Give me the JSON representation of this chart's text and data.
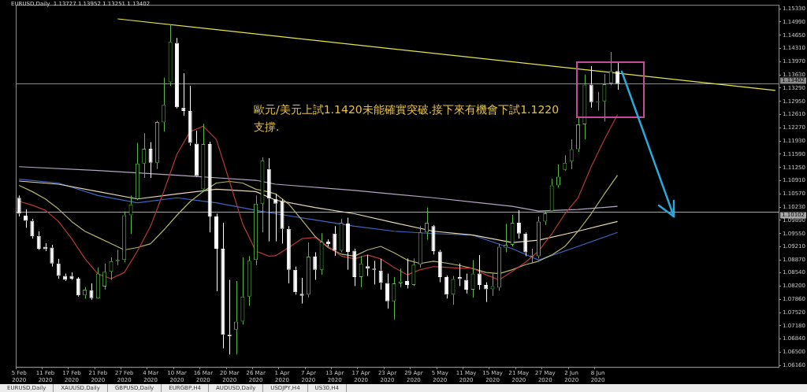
{
  "chart_data": {
    "type": "candlestick",
    "title": "EURUSD,Daily  1.13727 1.13952 1.13251 1.13402",
    "categories": [
      "5 Feb 2020",
      null,
      null,
      null,
      "11 Feb 2020",
      null,
      null,
      null,
      "17 Feb 2020",
      null,
      null,
      null,
      "21 Feb 2020",
      null,
      null,
      null,
      "27 Feb 2020",
      null,
      null,
      null,
      "4 Mar 2020",
      null,
      null,
      null,
      "10 Mar 2020",
      null,
      null,
      null,
      "16 Mar 2020",
      null,
      null,
      null,
      "20 Mar 2020",
      null,
      null,
      null,
      "26 Mar 2020",
      null,
      null,
      null,
      "1 Apr 2020",
      null,
      null,
      null,
      "7 Apr 2020",
      null,
      null,
      null,
      "13 Apr 2020",
      null,
      null,
      null,
      "17 Apr 2020",
      null,
      null,
      null,
      "23 Apr 2020",
      null,
      null,
      null,
      "29 Apr 2020",
      null,
      null,
      null,
      "5 May 2020",
      null,
      null,
      null,
      "11 May 2020",
      null,
      null,
      null,
      "15 May 2020",
      null,
      null,
      null,
      "21 May 2020",
      null,
      null,
      null,
      "27 May 2020",
      null,
      null,
      null,
      "2 Jun 2020",
      null,
      null,
      null,
      "8 Jun 2020",
      null,
      null,
      null,
      null,
      null,
      null,
      null,
      null,
      null,
      null,
      null,
      null,
      null,
      null,
      null,
      null,
      null,
      null,
      null,
      null,
      null,
      null,
      null,
      null,
      null,
      null,
      null
    ],
    "colors": [
      "#ffffff",
      "#ffffff",
      "#ffffff",
      "#ffffff",
      "#ffffff",
      "#ffffff",
      "#ffffff",
      "#ffffff",
      "#ffffff",
      "#ffffff",
      "#5cb84c",
      "#ffffff",
      "#5cb84c",
      "#5cb84c",
      "#5cb84c",
      "#5cb84c",
      "#5cb84c",
      "#5cb84c",
      "#5cb84c",
      "#5cb84c",
      "#ffffff",
      "#5cb84c",
      "#5cb84c",
      "#5cb84c",
      "#ffffff",
      "#ffffff",
      "#ffffff",
      "#ffffff",
      "#5cb84c",
      "#ffffff",
      "#ffffff",
      "#ffffff",
      "#ffffff",
      "#5cb84c",
      "#5cb84c",
      "#5cb84c",
      "#5cb84c",
      "#5cb84c",
      "#ffffff",
      "#ffffff",
      "#ffffff",
      "#ffffff",
      "#ffffff",
      "#ffffff",
      "#5cb84c",
      "#ffffff",
      "#5cb84c",
      "#ffffff",
      "#ffffff",
      "#5cb84c",
      "#ffffff",
      "#ffffff",
      "#5cb84c",
      "#ffffff",
      "#ffffff",
      "#ffffff",
      "#ffffff",
      "#5cb84c",
      "#5cb84c",
      "#ffffff",
      "#5cb84c",
      "#5cb84c",
      "#5cb84c",
      "#ffffff",
      "#ffffff",
      "#ffffff",
      "#5cb84c",
      "#ffffff",
      "#ffffff",
      "#5cb84c",
      "#ffffff",
      "#ffffff",
      "#5cb84c",
      "#5cb84c",
      "#5cb84c",
      "#5cb84c",
      "#ffffff",
      "#ffffff",
      "#5cb84c",
      "#5cb84c",
      "#5cb84c",
      "#5cb84c",
      "#5cb84c",
      "#5cb84c",
      "#5cb84c",
      "#5cb84c",
      "#5cb84c",
      "#ffffff",
      "#5cb84c",
      "#5cb84c",
      "#5cb84c",
      "#ffffff",
      null,
      null,
      null,
      null,
      null,
      null,
      null,
      null,
      null,
      null,
      null,
      null,
      null,
      null,
      null,
      null,
      null,
      null,
      null,
      null,
      null,
      null,
      null,
      null
    ],
    "ohlc": [
      [
        1.1047,
        1.1053,
        1.0999,
        1.1006
      ],
      [
        1.1001,
        1.1017,
        1.097,
        1.0988
      ],
      [
        1.0988,
        1.0993,
        1.0942,
        1.0948
      ],
      [
        1.0949,
        1.0961,
        1.0913,
        1.0916
      ],
      [
        1.0921,
        1.093,
        1.091,
        1.0915
      ],
      [
        1.0919,
        1.0926,
        1.087,
        1.0878
      ],
      [
        1.0878,
        1.089,
        1.0839,
        1.0846
      ],
      [
        1.0846,
        1.0852,
        1.0833,
        1.0836
      ],
      [
        1.0846,
        1.0855,
        1.0836,
        1.0839
      ],
      [
        1.0839,
        1.0843,
        1.0793,
        1.0796
      ],
      [
        1.0796,
        1.0817,
        1.0788,
        1.0811
      ],
      [
        1.0809,
        1.0827,
        1.0785,
        1.0789
      ],
      [
        1.0788,
        1.0868,
        1.0787,
        1.0852
      ],
      [
        1.0819,
        1.0878,
        1.0811,
        1.0857
      ],
      [
        1.0857,
        1.0894,
        1.0836,
        1.0884
      ],
      [
        1.0884,
        1.0913,
        1.0874,
        1.0887
      ],
      [
        1.0887,
        1.1012,
        1.0881,
        1.1002
      ],
      [
        1.1002,
        1.1053,
        1.0954,
        1.103
      ],
      [
        1.1044,
        1.1188,
        1.1041,
        1.1135
      ],
      [
        1.1135,
        1.1213,
        1.1098,
        1.1173
      ],
      [
        1.1173,
        1.119,
        1.1098,
        1.1137
      ],
      [
        1.1137,
        1.1245,
        1.1121,
        1.1242
      ],
      [
        1.1241,
        1.1356,
        1.1217,
        1.1286
      ],
      [
        1.1344,
        1.1493,
        1.1335,
        1.1448
      ],
      [
        1.1445,
        1.1458,
        1.1277,
        1.128
      ],
      [
        1.1279,
        1.1367,
        1.1258,
        1.127
      ],
      [
        1.127,
        1.1335,
        1.1181,
        1.1188
      ],
      [
        1.1186,
        1.122,
        1.1101,
        1.1103
      ],
      [
        1.1069,
        1.1237,
        1.1063,
        1.1185
      ],
      [
        1.1185,
        1.1191,
        1.0958,
        1.0999
      ],
      [
        1.0999,
        1.1006,
        1.0807,
        1.0916
      ],
      [
        1.0916,
        1.0983,
        1.066,
        1.0695
      ],
      [
        1.0695,
        1.0836,
        1.0644,
        1.0691
      ],
      [
        1.0708,
        1.0833,
        1.0644,
        1.0729
      ],
      [
        1.0729,
        1.0894,
        1.0721,
        1.0793
      ],
      [
        1.0793,
        1.0897,
        1.0769,
        1.0885
      ],
      [
        1.0887,
        1.1053,
        1.0874,
        1.1032
      ],
      [
        1.1032,
        1.1151,
        1.0958,
        1.1143
      ],
      [
        1.1121,
        1.1149,
        1.0935,
        1.1045
      ],
      [
        1.1044,
        1.1057,
        1.0935,
        1.1032
      ],
      [
        1.1038,
        1.1044,
        1.0929,
        1.0967
      ],
      [
        1.0967,
        1.0974,
        1.0827,
        1.0862
      ],
      [
        1.0862,
        1.087,
        1.0798,
        1.0804
      ],
      [
        1.08,
        1.0841,
        1.0775,
        1.0795
      ],
      [
        1.0798,
        1.0932,
        1.0791,
        1.0896
      ],
      [
        1.0896,
        1.0907,
        1.0836,
        1.0862
      ],
      [
        1.0862,
        1.0956,
        1.0849,
        1.0934
      ],
      [
        1.0934,
        1.094,
        1.0922,
        1.0928
      ],
      [
        1.0955,
        1.0974,
        1.0898,
        1.0911
      ],
      [
        1.0911,
        1.0993,
        1.0907,
        1.0983
      ],
      [
        1.0981,
        1.0996,
        1.0862,
        1.0908
      ],
      [
        1.0911,
        1.0916,
        1.082,
        1.0843
      ],
      [
        1.0843,
        1.0897,
        1.0817,
        1.0878
      ],
      [
        1.0871,
        1.09,
        1.0846,
        1.0865
      ],
      [
        1.0865,
        1.0885,
        1.0824,
        1.0862
      ],
      [
        1.086,
        1.089,
        1.0811,
        1.0828
      ],
      [
        1.0828,
        1.0852,
        1.0762,
        1.0781
      ],
      [
        1.0781,
        1.0843,
        1.0734,
        1.0827
      ],
      [
        1.0827,
        1.0865,
        1.0817,
        1.0832
      ],
      [
        1.0833,
        1.0891,
        1.0814,
        1.0823
      ],
      [
        1.0823,
        1.0891,
        1.082,
        1.0875
      ],
      [
        1.0875,
        1.0974,
        1.0868,
        1.0958
      ],
      [
        1.0958,
        1.1022,
        1.0939,
        1.0983
      ],
      [
        1.0974,
        1.0977,
        1.0901,
        1.091
      ],
      [
        1.0909,
        1.0913,
        1.083,
        1.0843
      ],
      [
        1.0843,
        1.0847,
        1.0788,
        1.0798
      ],
      [
        1.0798,
        1.0846,
        1.0772,
        1.0838
      ],
      [
        1.0843,
        1.0878,
        1.082,
        1.0838
      ],
      [
        1.0836,
        1.0852,
        1.0801,
        1.0811
      ],
      [
        1.0811,
        1.0887,
        1.079,
        1.0852
      ],
      [
        1.0852,
        1.09,
        1.0811,
        1.0823
      ],
      [
        1.0823,
        1.083,
        1.0779,
        1.0812
      ],
      [
        1.0812,
        1.0852,
        1.0795,
        1.082
      ],
      [
        1.0816,
        1.0929,
        1.0808,
        1.0921
      ],
      [
        1.0919,
        1.098,
        1.0907,
        1.0926
      ],
      [
        1.0926,
        1.1003,
        1.0922,
        1.0983
      ],
      [
        1.0983,
        1.1015,
        1.0942,
        1.0955
      ],
      [
        1.0955,
        1.0958,
        1.0897,
        1.0907
      ],
      [
        1.0895,
        1.0916,
        1.0878,
        1.0899
      ],
      [
        1.0897,
        1.0999,
        1.0891,
        1.0986
      ],
      [
        1.0986,
        1.1012,
        1.0977,
        1.1007
      ],
      [
        1.1012,
        1.1096,
        1.1009,
        1.1079
      ],
      [
        1.1079,
        1.1133,
        1.1073,
        1.1101
      ],
      [
        1.1119,
        1.1156,
        1.1117,
        1.1137
      ],
      [
        1.114,
        1.1197,
        1.1121,
        1.1172
      ],
      [
        1.1172,
        1.1255,
        1.1165,
        1.1236
      ],
      [
        1.1236,
        1.1364,
        1.1197,
        1.1338
      ],
      [
        1.1338,
        1.1386,
        1.1279,
        1.1293
      ],
      [
        1.1293,
        1.1319,
        1.1271,
        1.1295
      ],
      [
        1.1295,
        1.1365,
        1.1243,
        1.1339
      ],
      [
        1.1341,
        1.1422,
        1.1336,
        1.1373
      ],
      [
        1.13727,
        1.13952,
        1.13251,
        1.13402
      ],
      null,
      null,
      null,
      null,
      null,
      null,
      null,
      null,
      null,
      null,
      null,
      null,
      null,
      null,
      null,
      null,
      null,
      null,
      null,
      null,
      null,
      null,
      null,
      null
    ],
    "series": [
      {
        "type": "line",
        "color": "#b8373a",
        "values": [
          1.1038,
          null,
          1.1028,
          null,
          1.1015,
          null,
          1.0986,
          null,
          1.0942,
          null,
          1.0891,
          null,
          1.0851,
          null,
          1.0839,
          null,
          1.0855,
          null,
          1.091,
          null,
          1.0974,
          null,
          1.1063,
          null,
          1.1159,
          null,
          1.1217,
          null,
          1.1231,
          null,
          1.1197,
          null,
          1.1089,
          null,
          1.098,
          null,
          1.091,
          null,
          1.0897,
          1.0898,
          null,
          1.0919,
          null,
          1.0942,
          null,
          1.0945,
          null,
          1.0922,
          null,
          1.0897,
          null,
          1.089,
          null,
          1.09,
          null,
          1.089,
          null,
          1.0868,
          null,
          1.0849,
          null,
          1.0862,
          null,
          1.087,
          null,
          1.0868,
          null,
          1.0866,
          null,
          1.0866,
          null,
          1.0849,
          null,
          1.0836,
          null,
          1.0858,
          null,
          1.0881,
          null,
          1.091,
          null,
          1.0954,
          null,
          1.1006,
          null,
          1.1047,
          null,
          1.1127,
          null,
          1.1197,
          null,
          1.1261,
          null,
          null,
          null,
          null,
          null,
          null,
          null,
          null,
          null,
          null,
          null,
          null,
          null,
          null,
          null,
          null,
          null,
          null,
          null,
          null,
          null,
          null,
          null,
          null
        ]
      },
      {
        "type": "line",
        "color": "#b4b46e",
        "values": [
          1.1079,
          null,
          1.1063,
          null,
          1.1044,
          null,
          1.1018,
          null,
          1.0986,
          null,
          1.0961,
          null,
          1.0945,
          null,
          1.0929,
          null,
          1.0913,
          null,
          1.0919,
          null,
          1.0929,
          null,
          1.0964,
          null,
          1.1002,
          null,
          1.1037,
          null,
          1.1063,
          null,
          1.1085,
          null,
          1.1089,
          null,
          1.1085,
          null,
          1.1069,
          null,
          1.1062,
          1.1057,
          null,
          1.1031,
          null,
          1.099,
          null,
          1.0948,
          null,
          1.0919,
          null,
          1.0902,
          null,
          1.0897,
          null,
          1.0913,
          null,
          1.0922,
          null,
          1.0906,
          null,
          1.0887,
          null,
          1.0878,
          null,
          1.0884,
          null,
          1.0879,
          null,
          1.0873,
          null,
          1.0865,
          null,
          1.0855,
          null,
          1.0852,
          null,
          1.0862,
          null,
          1.0875,
          null,
          1.0884,
          null,
          1.09,
          null,
          1.0922,
          null,
          1.0961,
          null,
          1.1006,
          null,
          1.1057,
          null,
          1.1105,
          null,
          null,
          null,
          null,
          null,
          null,
          null,
          null,
          null,
          null,
          null,
          null,
          null,
          null,
          null,
          null,
          null,
          null,
          null,
          null,
          null,
          null,
          null,
          null
        ]
      },
      {
        "type": "line",
        "color": "#e6d8b4",
        "values": [
          1.109,
          null,
          null,
          null,
          null,
          null,
          1.1082,
          null,
          null,
          null,
          null,
          null,
          1.1063,
          null,
          null,
          null,
          null,
          null,
          1.1044,
          null,
          null,
          null,
          null,
          null,
          1.1057,
          null,
          null,
          null,
          null,
          null,
          1.1069,
          null,
          null,
          null,
          null,
          null,
          1.1063,
          null,
          null,
          1.1041,
          null,
          null,
          null,
          null,
          null,
          1.1022,
          null,
          null,
          null,
          null,
          null,
          1.1006,
          null,
          null,
          null,
          null,
          null,
          1.0983,
          null,
          null,
          null,
          null,
          null,
          1.0961,
          null,
          null,
          null,
          null,
          null,
          1.0951,
          null,
          null,
          null,
          null,
          null,
          1.0932,
          null,
          null,
          null,
          1.0938,
          null,
          null,
          null,
          null,
          null,
          1.0961,
          null,
          null,
          null,
          null,
          null,
          1.0986,
          null,
          null,
          null,
          null,
          null,
          null,
          null,
          null,
          null,
          null,
          null,
          null,
          null,
          null,
          null,
          null,
          null,
          null,
          null,
          null,
          null,
          null,
          null,
          null
        ]
      },
      {
        "type": "line",
        "color": "#3f66c4",
        "values": [
          1.1095,
          null,
          null,
          null,
          null,
          null,
          1.1085,
          null,
          null,
          null,
          null,
          null,
          1.1053,
          null,
          null,
          null,
          null,
          null,
          1.1034,
          null,
          null,
          null,
          null,
          null,
          1.1047,
          null,
          null,
          null,
          null,
          null,
          1.1034,
          null,
          null,
          null,
          null,
          null,
          1.1015,
          null,
          null,
          1.1006,
          null,
          null,
          null,
          null,
          null,
          1.099,
          null,
          null,
          null,
          null,
          null,
          1.0974,
          null,
          null,
          null,
          null,
          null,
          1.0961,
          null,
          null,
          null,
          null,
          null,
          1.0955,
          null,
          null,
          null,
          null,
          null,
          1.0951,
          null,
          null,
          null,
          null,
          null,
          1.0916,
          null,
          null,
          null,
          1.0887,
          null,
          null,
          null,
          null,
          null,
          1.0922,
          null,
          null,
          null,
          null,
          null,
          1.0958,
          null,
          null,
          null,
          null,
          null,
          null,
          null,
          null,
          null,
          null,
          null,
          null,
          null,
          null,
          null,
          null,
          null,
          null,
          null,
          null,
          null,
          null,
          null,
          null
        ]
      },
      {
        "type": "line",
        "color": "#b4a6c4",
        "values": [
          1.1127,
          null,
          null,
          null,
          null,
          null,
          null,
          null,
          null,
          null,
          null,
          null,
          1.1117,
          null,
          null,
          null,
          null,
          null,
          null,
          null,
          null,
          null,
          null,
          null,
          1.1105,
          null,
          null,
          null,
          null,
          null,
          null,
          null,
          null,
          null,
          null,
          null,
          1.1092,
          null,
          null,
          1.1082,
          null,
          null,
          null,
          null,
          null,
          null,
          null,
          null,
          null,
          null,
          null,
          1.1066,
          null,
          null,
          null,
          null,
          null,
          null,
          null,
          null,
          null,
          null,
          null,
          1.1047,
          null,
          null,
          null,
          null,
          null,
          null,
          null,
          null,
          null,
          null,
          null,
          1.1025,
          null,
          null,
          null,
          1.1013,
          null,
          null,
          null,
          null,
          null,
          1.1017,
          null,
          null,
          null,
          null,
          null,
          1.1025,
          null,
          null,
          null,
          null,
          null,
          null,
          null,
          null,
          null,
          null,
          null,
          null,
          null,
          null,
          null,
          null,
          null,
          null,
          null,
          null,
          null,
          null,
          null,
          null
        ]
      },
      {
        "type": "line",
        "color": "#e6e64a",
        "values": [
          null,
          null,
          null,
          null,
          null,
          null,
          null,
          null,
          null,
          null,
          null,
          null,
          null,
          null,
          null,
          1.1507,
          null,
          null,
          null,
          null,
          null,
          null,
          null,
          null,
          null,
          null,
          null,
          null,
          null,
          null,
          null,
          null,
          null,
          null,
          null,
          null,
          null,
          null,
          null,
          null,
          null,
          null,
          null,
          null,
          null,
          null,
          null,
          null,
          null,
          null,
          null,
          null,
          null,
          null,
          null,
          null,
          null,
          null,
          null,
          null,
          null,
          null,
          null,
          null,
          null,
          null,
          null,
          null,
          null,
          null,
          null,
          null,
          null,
          null,
          null,
          null,
          null,
          null,
          null,
          null,
          null,
          null,
          null,
          null,
          null,
          null,
          null,
          null,
          null,
          null,
          null,
          null,
          null,
          null,
          null,
          null,
          null,
          null,
          null,
          null,
          null,
          null,
          null,
          null,
          null,
          null,
          null,
          null,
          null,
          null,
          null,
          null,
          null,
          null,
          null,
          1.1323
        ]
      }
    ],
    "ylim": [
      1.0612,
      1.1543
    ],
    "yticks": [
      {
        "value": 1.1533,
        "label": "1.15330"
      },
      {
        "value": 1.1499,
        "label": "1.14990"
      },
      {
        "value": 1.1465,
        "label": "1.14650"
      },
      {
        "value": 1.1431,
        "label": "1.14310"
      },
      {
        "value": 1.1397,
        "label": "1.13970"
      },
      {
        "value": 1.1363,
        "label": "1.13630"
      },
      {
        "value": 1.1329,
        "label": "1.13290"
      },
      {
        "value": 1.1295,
        "label": "1.12950"
      },
      {
        "value": 1.1261,
        "label": "1.12610"
      },
      {
        "value": 1.1227,
        "label": "1.12270"
      },
      {
        "value": 1.1193,
        "label": "1.11930"
      },
      {
        "value": 1.1159,
        "label": "1.11590"
      },
      {
        "value": 1.1125,
        "label": "1.11250"
      },
      {
        "value": 1.1091,
        "label": "1.10910"
      },
      {
        "value": 1.1057,
        "label": "1.10570"
      },
      {
        "value": 1.1023,
        "label": "1.10230"
      },
      {
        "value": 1.0989,
        "label": "1.09890"
      },
      {
        "value": 1.0955,
        "label": "1.09550"
      },
      {
        "value": 1.0921,
        "label": "1.09210"
      },
      {
        "value": 1.0887,
        "label": "1.08870"
      },
      {
        "value": 1.0854,
        "label": "1.08540"
      },
      {
        "value": 1.082,
        "label": "1.08200"
      },
      {
        "value": 1.0786,
        "label": "1.07860"
      },
      {
        "value": 1.0752,
        "label": "1.07520"
      },
      {
        "value": 1.0718,
        "label": "1.07180"
      },
      {
        "value": 1.0684,
        "label": "1.06840"
      },
      {
        "value": 1.065,
        "label": "1.06500"
      },
      {
        "value": 1.0616,
        "label": "1.06160"
      }
    ],
    "ref_lines": [
      {
        "axis": "y",
        "value": 1.13402,
        "label": "1.13402",
        "color": "#8c8c8c"
      },
      {
        "axis": "y",
        "value": 1.10102,
        "label": "1.10102",
        "color": "#a8a8a8"
      }
    ],
    "annotations": [
      "歐元/美元上試1.1420未能確實突破.接下來有機會下試1.1220支撐.",
      "EURUSD,Daily",
      "XAUUSD,Daily",
      "GBPUSD,Daily",
      "EURGBP,H4",
      "AUDUSD,Daily",
      "USDJPY,H4",
      "US30,H4"
    ]
  }
}
